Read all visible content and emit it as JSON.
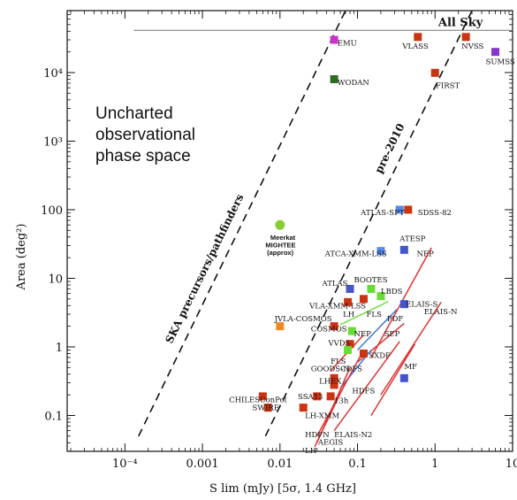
{
  "chart_data": {
    "type": "scatter",
    "xlabel": "S lim  (mJy) [5σ, 1.4 GHz]",
    "ylabel": "Area (deg²)",
    "xscale": "log",
    "yscale": "log",
    "xlim": [
      1.8e-05,
      10
    ],
    "ylim": [
      0.03,
      80000
    ],
    "x_ticks": [
      {
        "value": 0.0001,
        "label": "10⁻⁴"
      },
      {
        "value": 0.001,
        "label": "0.001"
      },
      {
        "value": 0.01,
        "label": "0.01"
      },
      {
        "value": 0.1,
        "label": "0.1"
      },
      {
        "value": 1,
        "label": "1"
      },
      {
        "value": 10,
        "label": "10"
      }
    ],
    "y_ticks": [
      {
        "value": 0.1,
        "label": "0.1"
      },
      {
        "value": 1,
        "label": "1"
      },
      {
        "value": 10,
        "label": "10"
      },
      {
        "value": 100,
        "label": "100"
      },
      {
        "value": 1000,
        "label": "10³"
      },
      {
        "value": 10000,
        "label": "10⁴"
      }
    ],
    "grid": false,
    "annotation_region": "Uncharted observational phase space",
    "all_sky": {
      "label": "All Sky",
      "y": 41253,
      "x_from": 0.00013,
      "x_to": 10
    },
    "lines": [
      {
        "label": "SKA precursors/pathfinders",
        "from": [
          0.00015,
          0.05
        ],
        "to": [
          0.07,
          80000
        ]
      },
      {
        "label": "pre-2010",
        "from": [
          0.0065,
          0.05
        ],
        "to": [
          3,
          80000
        ]
      }
    ],
    "points": [
      {
        "label": "EMU",
        "x": 0.05,
        "y": 30000,
        "color": "#cc33cc",
        "shape": "square"
      },
      {
        "label": "WODAN",
        "x": 0.05,
        "y": 8000,
        "color": "#2d6e1e",
        "shape": "square"
      },
      {
        "label": "VLASS",
        "x": 0.6,
        "y": 33000,
        "color": "#cc3311",
        "shape": "square"
      },
      {
        "label": "NVSS",
        "x": 2.5,
        "y": 33000,
        "color": "#cc3311",
        "shape": "square"
      },
      {
        "label": "SUMSS",
        "x": 6,
        "y": 20000,
        "color": "#8833cc",
        "shape": "square"
      },
      {
        "label": "FIRST",
        "x": 1,
        "y": 9900,
        "color": "#cc3311",
        "shape": "square"
      },
      {
        "label": "ATLAS-SPT",
        "x": 0.35,
        "y": 100,
        "color": "#5588ee",
        "shape": "square"
      },
      {
        "label": "SDSS-82",
        "x": 0.45,
        "y": 100,
        "color": "#cc3311",
        "shape": "square"
      },
      {
        "label": "Meerkat MIGHTEE (approx)",
        "x": 0.01,
        "y": 60,
        "color": "#88cc33",
        "shape": "circle"
      },
      {
        "label": "ATCA-XMM-LSS",
        "x": 0.2,
        "y": 25,
        "color": "#5588ee",
        "shape": "square"
      },
      {
        "label": "ATESP",
        "x": 0.4,
        "y": 26,
        "color": "#4455cc",
        "shape": "square"
      },
      {
        "label": "ATLAS",
        "x": 0.08,
        "y": 7,
        "color": "#4455cc",
        "shape": "square"
      },
      {
        "label": "BOOTES",
        "x": 0.15,
        "y": 7,
        "color": "#66dd33",
        "shape": "square"
      },
      {
        "label": "LBDS",
        "x": 0.2,
        "y": 5.5,
        "color": "#66dd33",
        "shape": "square"
      },
      {
        "label": "VLA-XMM-LSS",
        "x": 0.075,
        "y": 4.5,
        "color": "#cc3311",
        "shape": "square"
      },
      {
        "label": "LH",
        "x": 0.12,
        "y": 5,
        "color": "#cc3311",
        "shape": "square"
      },
      {
        "label": "ELAIS-N",
        "x": 0.4,
        "y": 4.2,
        "color": "#4455cc",
        "shape": "square"
      },
      {
        "label": "JVLA-COSMOS",
        "x": 0.01,
        "y": 2,
        "color": "#ee8822",
        "shape": "square"
      },
      {
        "label": "COSMOS",
        "x": 0.05,
        "y": 2,
        "color": "#cc3311",
        "shape": "square"
      },
      {
        "label": "NEP",
        "x": 0.085,
        "y": 1.7,
        "color": "#66dd33",
        "shape": "square"
      },
      {
        "label": "VVDS",
        "x": 0.08,
        "y": 1.1,
        "color": "#cc3311",
        "shape": "square"
      },
      {
        "label": "FLS",
        "x": 0.075,
        "y": 0.9,
        "color": "#66dd33",
        "shape": "square"
      },
      {
        "label": "SXDF",
        "x": 0.12,
        "y": 0.8,
        "color": "#cc3311",
        "shape": "square"
      },
      {
        "label": "CDFS",
        "x": 0.05,
        "y": 0.35,
        "color": "#cc3311",
        "shape": "square"
      },
      {
        "label": "LHEX",
        "x": 0.05,
        "y": 0.28,
        "color": "#cc3311",
        "shape": "square"
      },
      {
        "label": "MF",
        "x": 0.4,
        "y": 0.35,
        "color": "#4455cc",
        "shape": "square"
      },
      {
        "label": "SSA13",
        "x": 0.03,
        "y": 0.19,
        "color": "#cc3311",
        "shape": "square"
      },
      {
        "label": "13h",
        "x": 0.045,
        "y": 0.19,
        "color": "#cc3311",
        "shape": "square"
      },
      {
        "label": "CHILESConPol",
        "x": 0.006,
        "y": 0.19,
        "color": "#cc3311",
        "shape": "square"
      },
      {
        "label": "SWIRE",
        "x": 0.007,
        "y": 0.13,
        "color": "#cc3311",
        "shape": "square"
      },
      {
        "label": "LH-XMM",
        "x": 0.02,
        "y": 0.13,
        "color": "#cc3311",
        "shape": "square"
      }
    ],
    "tracks": [
      {
        "label": "ATESP-S",
        "color": "#dd3333",
        "from": [
          0.15,
          0.7
        ],
        "to": [
          0.9,
          28
        ]
      },
      {
        "label": "ELAIS-N",
        "color": "#dd3333",
        "from": [
          0.2,
          0.2
        ],
        "to": [
          1.2,
          4.5
        ]
      },
      {
        "label": "PDF",
        "color": "#4477dd",
        "from": [
          0.1,
          0.9
        ],
        "to": [
          0.32,
          3.5
        ]
      },
      {
        "label": "SEP",
        "color": "#dd3333",
        "from": [
          0.1,
          0.6
        ],
        "to": [
          0.4,
          2.2
        ]
      },
      {
        "label": "FLS-track",
        "color": "#66dd33",
        "from": [
          0.06,
          2.1
        ],
        "to": [
          0.25,
          4.6
        ]
      },
      {
        "label": "GOODS-N",
        "color": "#dd3333",
        "from": [
          0.045,
          0.45
        ],
        "to": [
          0.12,
          1.5
        ]
      },
      {
        "label": "HDFS",
        "color": "#4477dd",
        "from": [
          0.06,
          0.25
        ],
        "to": [
          0.15,
          0.9
        ]
      },
      {
        "label": "HDFN",
        "color": "#dd3333",
        "from": [
          0.03,
          0.05
        ],
        "to": [
          0.12,
          0.9
        ]
      },
      {
        "label": "AEGIS",
        "color": "#dd3333",
        "from": [
          0.03,
          0.04
        ],
        "to": [
          0.08,
          0.5
        ]
      },
      {
        "label": "ELAIS-N2",
        "color": "#dd3333",
        "from": [
          0.05,
          0.06
        ],
        "to": [
          0.35,
          1.2
        ]
      },
      {
        "label": "LH-track",
        "color": "#dd3333",
        "from": [
          0.028,
          0.035
        ],
        "to": [
          0.07,
          0.3
        ]
      },
      {
        "label": "MF-track",
        "color": "#dd3333",
        "from": [
          0.15,
          0.1
        ],
        "to": [
          0.55,
          1.1
        ]
      }
    ],
    "text_labels": [
      {
        "text": "EMU",
        "x": 0.055,
        "y": 27000,
        "style": "survey"
      },
      {
        "text": "WODAN",
        "x": 0.055,
        "y": 7200,
        "style": "survey"
      },
      {
        "text": "VLASS",
        "x": 0.38,
        "y": 24500,
        "style": "survey"
      },
      {
        "text": "NVSS",
        "x": 2.2,
        "y": 24500,
        "style": "survey"
      },
      {
        "text": "SUMSS",
        "x": 4.5,
        "y": 14500,
        "style": "survey"
      },
      {
        "text": "FIRST",
        "x": 1.02,
        "y": 6500,
        "style": "survey"
      },
      {
        "text": "ATLAS-SPT",
        "x": 0.11,
        "y": 92,
        "style": "survey"
      },
      {
        "text": "SDSS-82",
        "x": 0.6,
        "y": 92,
        "style": "survey"
      },
      {
        "text": "Meerkat",
        "x": 0.0075,
        "y": 40,
        "style": "small"
      },
      {
        "text": "MIGHTEE",
        "x": 0.0065,
        "y": 31,
        "style": "small"
      },
      {
        "text": "(approx)",
        "x": 0.0068,
        "y": 24,
        "style": "small"
      },
      {
        "text": "ATCA-XMM-LSS",
        "x": 0.038,
        "y": 23,
        "style": "survey"
      },
      {
        "text": "ATESP",
        "x": 0.35,
        "y": 38,
        "style": "survey"
      },
      {
        "text": "NEP",
        "x": 0.58,
        "y": 23,
        "style": "survey"
      },
      {
        "text": "ATLAS",
        "x": 0.035,
        "y": 8.5,
        "style": "survey"
      },
      {
        "text": "BOOTES",
        "x": 0.09,
        "y": 9.5,
        "style": "survey"
      },
      {
        "text": "LBDS",
        "x": 0.2,
        "y": 6.5,
        "style": "survey"
      },
      {
        "text": "VLA-XMM-LSS",
        "x": 0.024,
        "y": 4,
        "style": "survey"
      },
      {
        "text": "LH",
        "x": 0.065,
        "y": 3,
        "style": "survey"
      },
      {
        "text": "FLS",
        "x": 0.13,
        "y": 3,
        "style": "survey"
      },
      {
        "text": "ELAIS-S",
        "x": 0.42,
        "y": 4.2,
        "style": "survey"
      },
      {
        "text": "ELAIS-N",
        "x": 0.72,
        "y": 3.3,
        "style": "survey"
      },
      {
        "text": "PDF",
        "x": 0.24,
        "y": 2.6,
        "style": "survey"
      },
      {
        "text": "JVLA-COSMOS",
        "x": 0.0085,
        "y": 2.6,
        "style": "survey"
      },
      {
        "text": "COSMOS",
        "x": 0.025,
        "y": 1.85,
        "style": "survey"
      },
      {
        "text": "NEP",
        "x": 0.09,
        "y": 1.55,
        "style": "survey"
      },
      {
        "text": "SEP",
        "x": 0.22,
        "y": 1.55,
        "style": "survey"
      },
      {
        "text": "VVDS",
        "x": 0.042,
        "y": 1.15,
        "style": "survey"
      },
      {
        "text": "FLS",
        "x": 0.045,
        "y": 0.62,
        "style": "survey"
      },
      {
        "text": "SXDF",
        "x": 0.14,
        "y": 0.75,
        "style": "survey"
      },
      {
        "text": "GOODS-N",
        "x": 0.025,
        "y": 0.48,
        "style": "survey"
      },
      {
        "text": "CDFS",
        "x": 0.06,
        "y": 0.48,
        "style": "survey"
      },
      {
        "text": "MF",
        "x": 0.4,
        "y": 0.52,
        "style": "survey"
      },
      {
        "text": "LHEX",
        "x": 0.032,
        "y": 0.32,
        "style": "survey"
      },
      {
        "text": "HDFS",
        "x": 0.085,
        "y": 0.23,
        "style": "survey"
      },
      {
        "text": "SSA13",
        "x": 0.017,
        "y": 0.19,
        "style": "survey"
      },
      {
        "text": "13h",
        "x": 0.05,
        "y": 0.165,
        "style": "survey"
      },
      {
        "text": "CHILESConPol",
        "x": 0.0022,
        "y": 0.17,
        "style": "survey"
      },
      {
        "text": "SWIRE",
        "x": 0.0044,
        "y": 0.13,
        "style": "survey"
      },
      {
        "text": "LH-XMM",
        "x": 0.021,
        "y": 0.1,
        "style": "survey"
      },
      {
        "text": "HDFN",
        "x": 0.021,
        "y": 0.053,
        "style": "survey"
      },
      {
        "text": "ELAIS-N2",
        "x": 0.05,
        "y": 0.053,
        "style": "survey"
      },
      {
        "text": "AEGIS",
        "x": 0.031,
        "y": 0.041,
        "style": "survey"
      },
      {
        "text": "LH",
        "x": 0.021,
        "y": 0.031,
        "style": "survey"
      }
    ]
  }
}
